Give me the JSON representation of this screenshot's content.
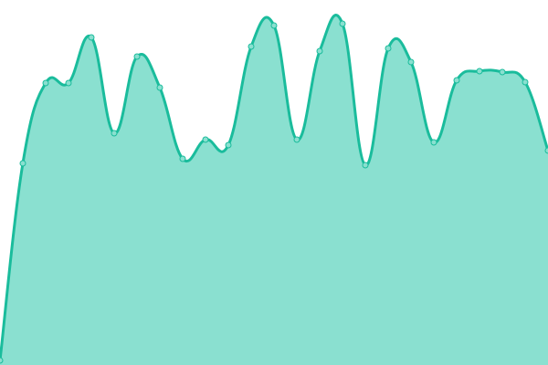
{
  "chart_data": {
    "type": "area",
    "title": "",
    "xlabel": "",
    "ylabel": "",
    "x": [
      0,
      1,
      2,
      3,
      4,
      5,
      6,
      7,
      8,
      9,
      10,
      11,
      12,
      13,
      14,
      15,
      16,
      17,
      18,
      19,
      20,
      21,
      22,
      23,
      24
    ],
    "values": [
      5,
      221,
      309,
      309,
      359,
      254,
      338,
      304,
      226,
      247,
      241,
      349,
      372,
      247,
      344,
      374,
      219,
      347,
      332,
      244,
      312,
      322,
      321,
      310,
      235
    ],
    "ylim": [
      0,
      400
    ],
    "xlim": [
      0,
      24
    ],
    "grid": false,
    "axes_visible": false,
    "smooth": true,
    "markers": true,
    "colors": {
      "line": "#1abc9c",
      "fill": "#8ae0d0",
      "marker_fill": "#8ae0d0",
      "marker_stroke": "#1abc9c"
    }
  }
}
